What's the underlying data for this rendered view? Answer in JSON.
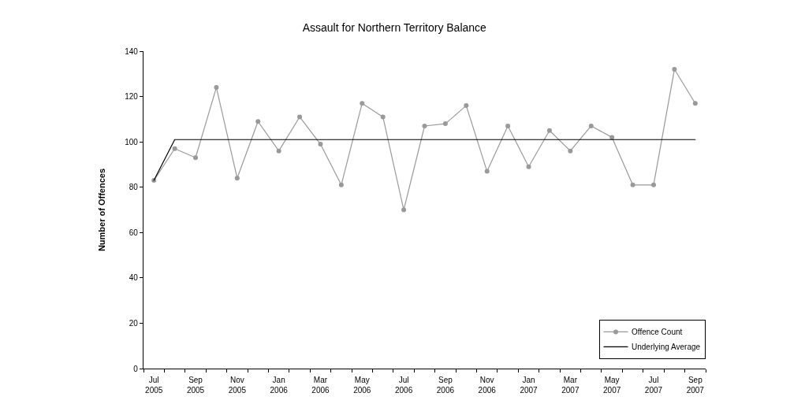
{
  "chart_data": {
    "type": "line",
    "title": "Assault for Northern Territory Balance",
    "ylabel": "Number of Offences",
    "categories": [
      "Jul\n2005",
      null,
      "Sep\n2005",
      null,
      "Nov\n2005",
      null,
      "Jan\n2006",
      null,
      "Mar\n2006",
      null,
      "May\n2006",
      null,
      "Jul\n2006",
      null,
      "Sep\n2006",
      null,
      "Nov\n2006",
      null,
      "Jan\n2007",
      null,
      "Mar\n2007",
      null,
      "May\n2007",
      null,
      "Jul\n2007",
      null,
      "Sep\n2007"
    ],
    "series": [
      {
        "name": "Offence Count",
        "color": "#999999",
        "marker": "circle",
        "values": [
          83,
          97,
          93,
          124,
          84,
          109,
          96,
          111,
          99,
          81,
          117,
          111,
          70,
          107,
          108,
          116,
          87,
          107,
          89,
          105,
          96,
          107,
          102,
          81,
          81,
          132,
          117
        ]
      },
      {
        "name": "Underlying Average",
        "color": "#000000",
        "marker": "none",
        "values": [
          83,
          101,
          101,
          101,
          101,
          101,
          101,
          101,
          101,
          101,
          101,
          101,
          101,
          101,
          101,
          101,
          101,
          101,
          101,
          101,
          101,
          101,
          101,
          101,
          101,
          101,
          101
        ]
      }
    ],
    "ylim": [
      0,
      140
    ],
    "yticks": [
      0,
      20,
      40,
      60,
      80,
      100,
      120,
      140
    ],
    "legend": "bottom right"
  }
}
